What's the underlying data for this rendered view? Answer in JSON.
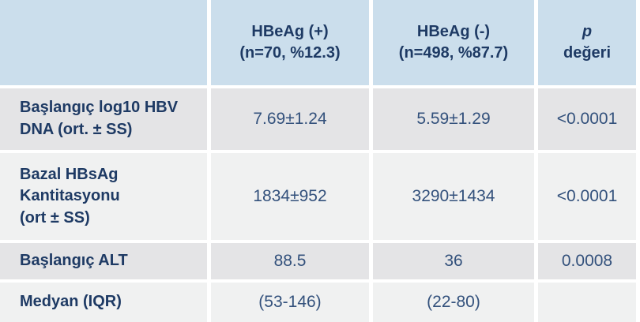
{
  "colors": {
    "header_bg": "#cbdeec",
    "row_dark_bg": "#e4e4e6",
    "row_light_bg": "#f0f1f1",
    "label_text": "#1e3a64",
    "value_text": "#33517c",
    "gap_color": "#ffffff"
  },
  "table": {
    "header": {
      "empty": "",
      "hbeag_pos": "HBeAg (+)\n(n=70, %12.3)",
      "hbeag_neg": "HBeAg (-)\n(n=498, %87.7)",
      "p_line1": "p",
      "p_line2": "değeri"
    },
    "rows": [
      {
        "label": "Başlangıç log10 HBV\nDNA (ort. ± SS)",
        "hbeag_pos": "7.69±1.24",
        "hbeag_neg": "5.59±1.29",
        "p_value": "<0.0001"
      },
      {
        "label": "Bazal HBsAg\nKantitasyonu\n(ort ± SS)",
        "hbeag_pos": "1834±952",
        "hbeag_neg": "3290±1434",
        "p_value": "<0.0001"
      },
      {
        "label": "Başlangıç ALT",
        "hbeag_pos": "88.5",
        "hbeag_neg": "36",
        "p_value": "0.0008"
      },
      {
        "label": "Medyan (IQR)",
        "hbeag_pos": "(53-146)",
        "hbeag_neg": "(22-80)",
        "p_value": ""
      }
    ]
  },
  "chart_data": {
    "type": "table",
    "columns": [
      "",
      "HBeAg (+) (n=70, %12.3)",
      "HBeAg (-) (n=498, %87.7)",
      "p değeri"
    ],
    "rows": [
      [
        "Başlangıç log10 HBV DNA (ort. ± SS)",
        "7.69±1.24",
        "5.59±1.29",
        "<0.0001"
      ],
      [
        "Bazal HBsAg Kantitasyonu (ort ± SS)",
        "1834±952",
        "3290±1434",
        "<0.0001"
      ],
      [
        "Başlangıç ALT",
        "88.5",
        "36",
        "0.0008"
      ],
      [
        "Medyan (IQR)",
        "(53-146)",
        "(22-80)",
        ""
      ]
    ]
  }
}
